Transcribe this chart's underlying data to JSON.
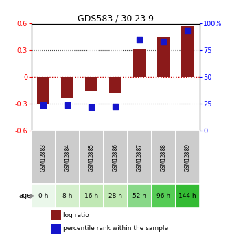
{
  "title": "GDS583 / 30.23.9",
  "samples": [
    "GSM12883",
    "GSM12884",
    "GSM12885",
    "GSM12886",
    "GSM12887",
    "GSM12888",
    "GSM12889"
  ],
  "ages": [
    "0 h",
    "8 h",
    "16 h",
    "28 h",
    "52 h",
    "96 h",
    "144 h"
  ],
  "log_ratio": [
    -0.3,
    -0.23,
    -0.16,
    -0.18,
    0.32,
    0.45,
    0.57
  ],
  "percentile_rank": [
    0.24,
    0.24,
    0.22,
    0.23,
    0.85,
    0.83,
    0.93
  ],
  "ylim": [
    -0.6,
    0.6
  ],
  "yticks_left": [
    -0.6,
    -0.3,
    0.0,
    0.3,
    0.6
  ],
  "yticks_left_labels": [
    "-0.6",
    "-0.3",
    "0",
    "0.3",
    "0.6"
  ],
  "yticks_right_vals": [
    0,
    25,
    50,
    75,
    100
  ],
  "yticks_right_pos": [
    -0.6,
    -0.3,
    0.0,
    0.3,
    0.6
  ],
  "bar_color": "#8B1A1A",
  "dot_color": "#1515CC",
  "bar_width": 0.5,
  "dot_size": 30,
  "age_colors": [
    "#eaf7ea",
    "#d4efcc",
    "#c0e8b4",
    "#c0e8b4",
    "#88d888",
    "#55cc55",
    "#33bb33"
  ],
  "sample_bg_color": "#cccccc",
  "dotted_line_color": "#444444",
  "zero_line_color": "#cc0000",
  "legend_items": [
    "log ratio",
    "percentile rank within the sample"
  ],
  "legend_colors": [
    "#8B1A1A",
    "#1515CC"
  ]
}
